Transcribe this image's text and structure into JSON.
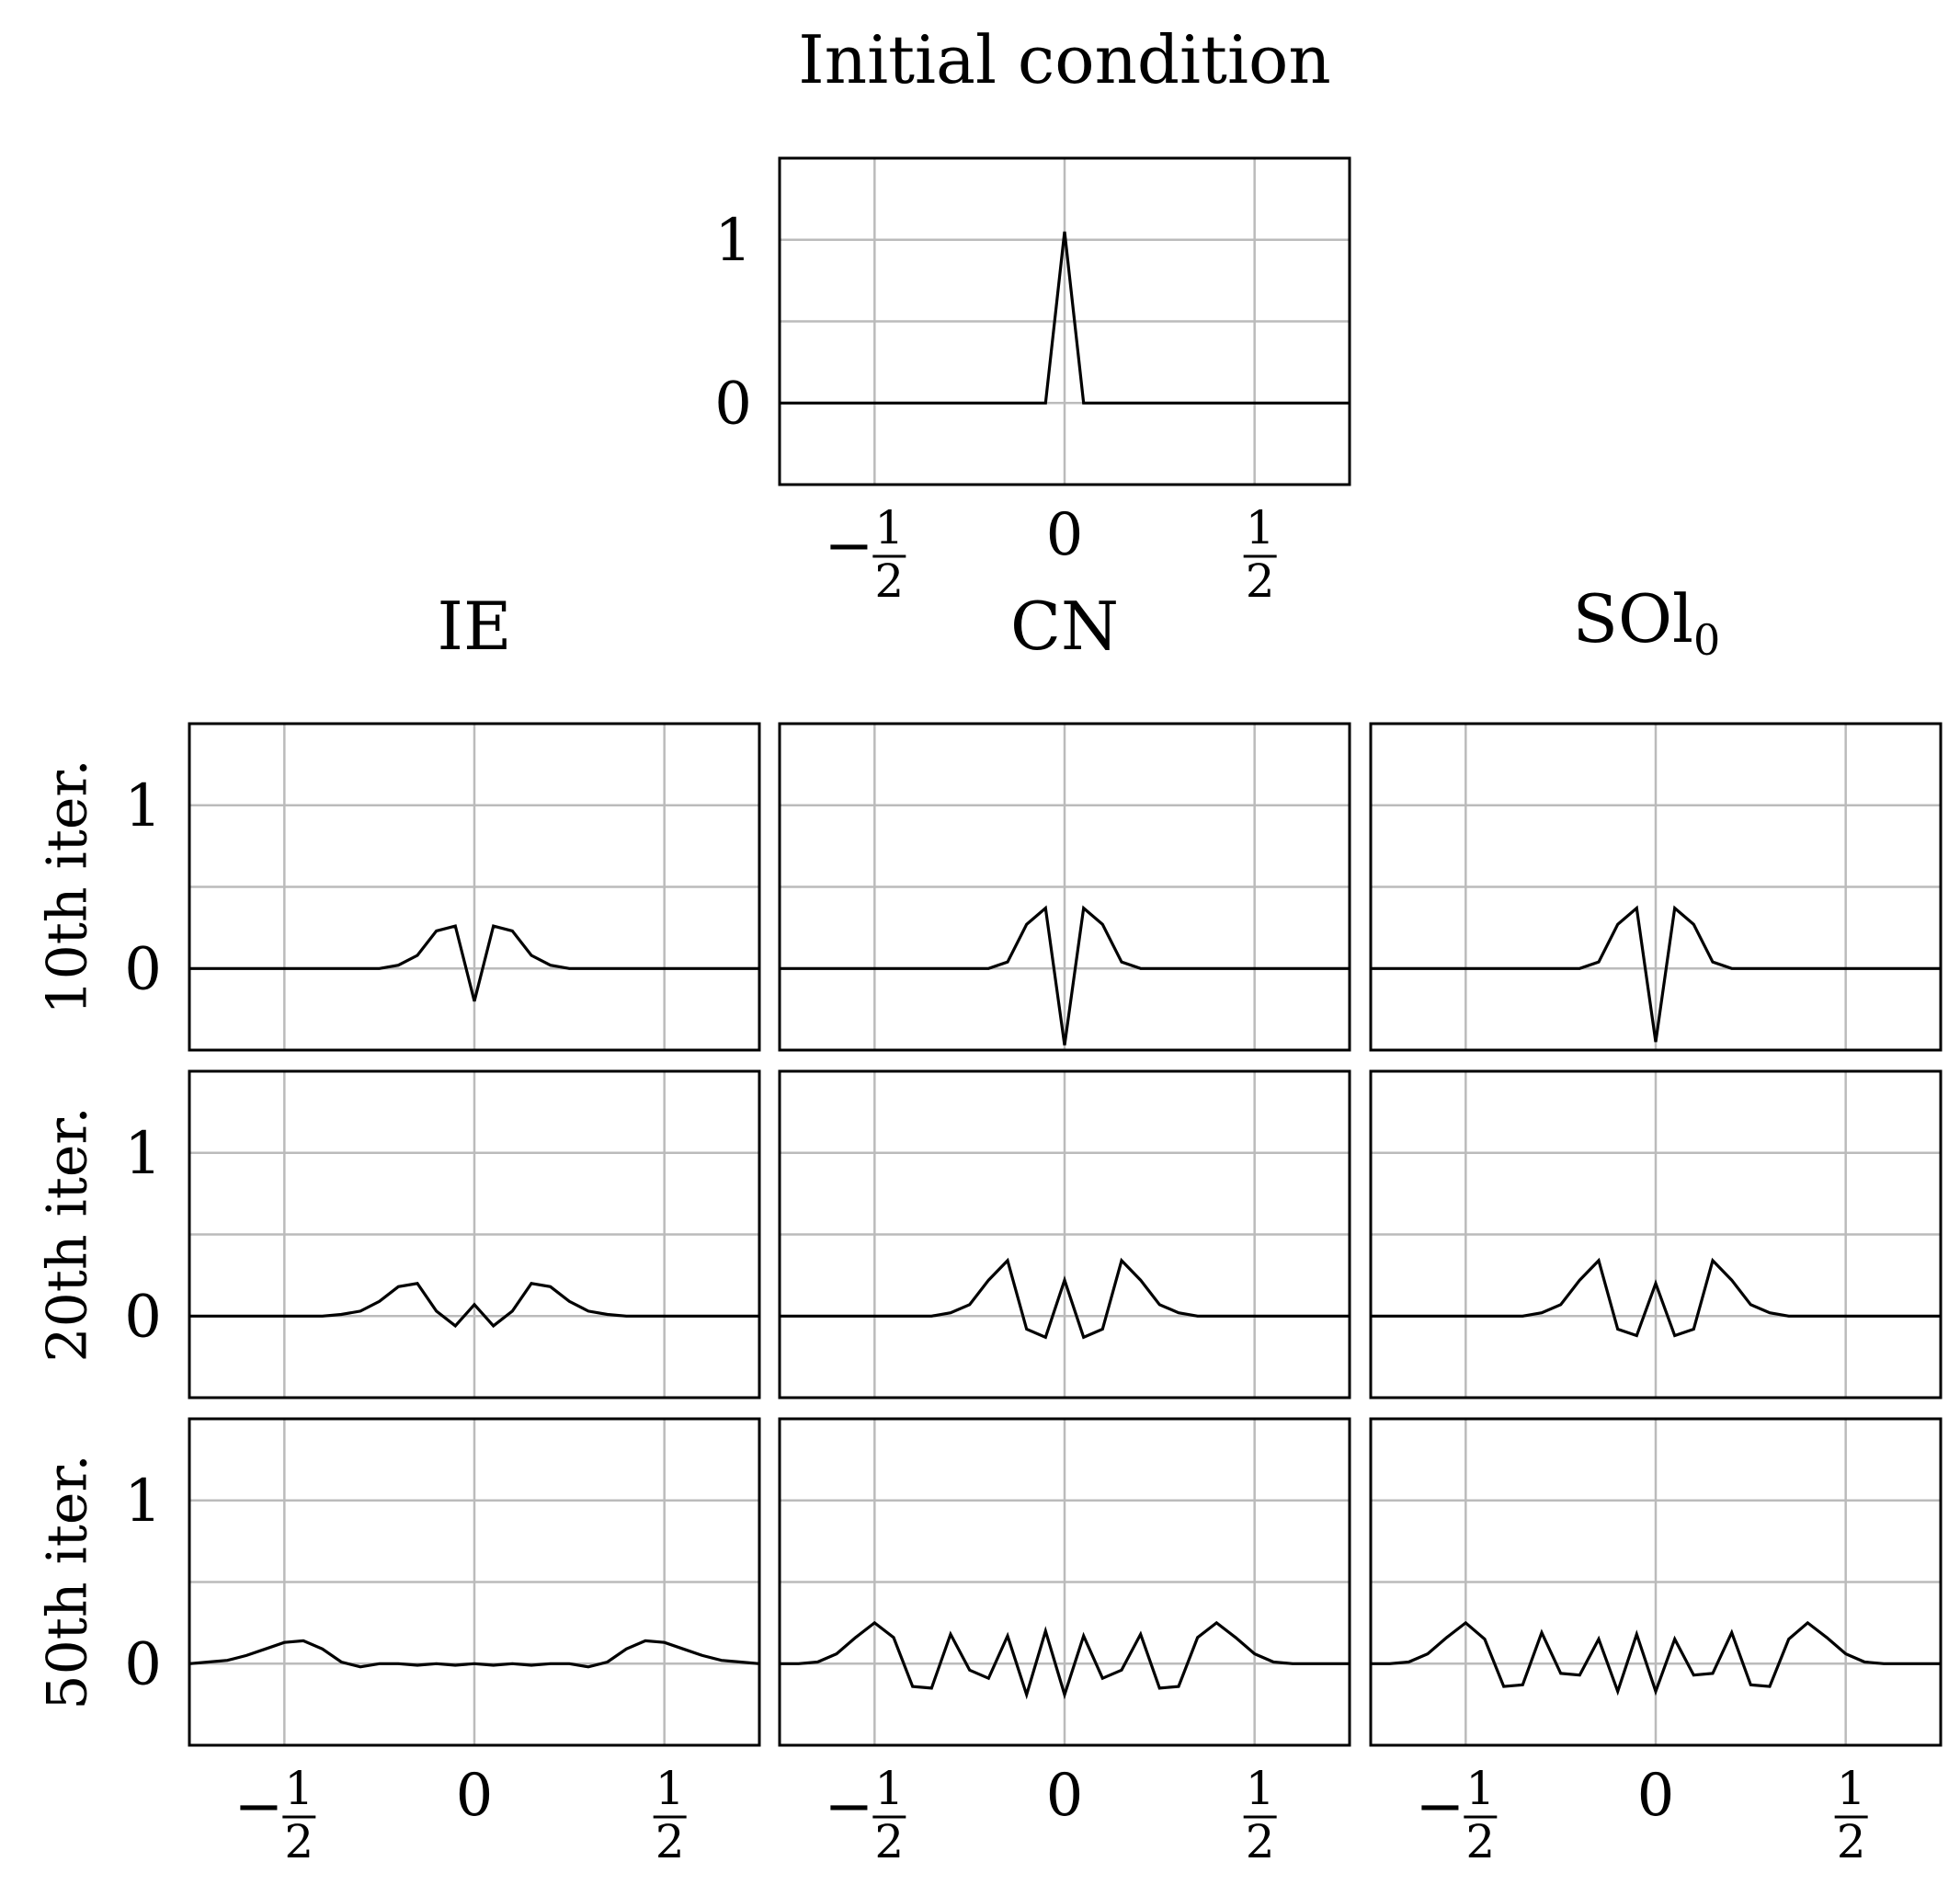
{
  "figure": {
    "title": "Initial condition",
    "column_titles": [
      {
        "main": "IE",
        "sub": ""
      },
      {
        "main": "CN",
        "sub": ""
      },
      {
        "main": "SOl",
        "sub": "0"
      }
    ],
    "row_labels": [
      "10th iter.",
      "20th iter.",
      "50th iter."
    ],
    "x_ticks": [
      {
        "value": -0.5,
        "sign": "−",
        "num": "1",
        "den": "2"
      },
      {
        "value": 0,
        "text": "0"
      },
      {
        "value": 0.5,
        "num": "1",
        "den": "2"
      }
    ],
    "y_ticks": [
      {
        "value": 0,
        "text": "0"
      },
      {
        "value": 1,
        "text": "1"
      }
    ],
    "line_color": "#000000",
    "grid_color": "#bbbbbb"
  },
  "chart_data": [
    {
      "type": "line",
      "panel": "initial",
      "title": "Initial condition",
      "xlim": [
        -0.75,
        0.75
      ],
      "ylim": [
        -0.5,
        1.5
      ],
      "grid": true,
      "x": [
        -0.75,
        -0.05,
        0,
        0.05,
        0.75
      ],
      "series": [
        {
          "values": [
            0,
            0,
            1.05,
            0,
            0
          ]
        }
      ]
    },
    {
      "type": "line",
      "panel": "IE-10",
      "column": "IE",
      "row": "10th iter.",
      "xlim": [
        -0.75,
        0.75
      ],
      "ylim": [
        -0.5,
        1.5
      ],
      "grid": true,
      "x": [
        -0.75,
        -0.25,
        -0.2,
        -0.15,
        -0.1,
        -0.05,
        0,
        0.05,
        0.1,
        0.15,
        0.2,
        0.25,
        0.75
      ],
      "series": [
        {
          "values": [
            0,
            0,
            0.02,
            0.08,
            0.23,
            0.26,
            -0.2,
            0.26,
            0.23,
            0.08,
            0.02,
            0,
            0
          ]
        }
      ]
    },
    {
      "type": "line",
      "panel": "CN-10",
      "column": "CN",
      "row": "10th iter.",
      "xlim": [
        -0.75,
        0.75
      ],
      "ylim": [
        -0.5,
        1.5
      ],
      "grid": true,
      "x": [
        -0.75,
        -0.2,
        -0.15,
        -0.1,
        -0.05,
        0,
        0.05,
        0.1,
        0.15,
        0.2,
        0.75
      ],
      "series": [
        {
          "values": [
            0,
            0,
            0.04,
            0.27,
            0.37,
            -0.47,
            0.37,
            0.27,
            0.04,
            0,
            0
          ]
        }
      ]
    },
    {
      "type": "line",
      "panel": "SO-10",
      "column": "SOl0",
      "row": "10th iter.",
      "xlim": [
        -0.75,
        0.75
      ],
      "ylim": [
        -0.5,
        1.5
      ],
      "grid": true,
      "x": [
        -0.75,
        -0.2,
        -0.15,
        -0.1,
        -0.05,
        0,
        0.05,
        0.1,
        0.15,
        0.2,
        0.75
      ],
      "series": [
        {
          "values": [
            0,
            0,
            0.04,
            0.27,
            0.37,
            -0.45,
            0.37,
            0.27,
            0.04,
            0,
            0
          ]
        }
      ]
    },
    {
      "type": "line",
      "panel": "IE-20",
      "column": "IE",
      "row": "20th iter.",
      "xlim": [
        -0.75,
        0.75
      ],
      "ylim": [
        -0.5,
        1.5
      ],
      "grid": true,
      "x": [
        -0.75,
        -0.4,
        -0.35,
        -0.3,
        -0.25,
        -0.2,
        -0.15,
        -0.1,
        -0.05,
        0,
        0.05,
        0.1,
        0.15,
        0.2,
        0.25,
        0.3,
        0.35,
        0.4,
        0.75
      ],
      "series": [
        {
          "values": [
            0,
            0,
            0.01,
            0.03,
            0.09,
            0.18,
            0.2,
            0.03,
            -0.06,
            0.07,
            -0.06,
            0.03,
            0.2,
            0.18,
            0.09,
            0.03,
            0.01,
            0,
            0
          ]
        }
      ]
    },
    {
      "type": "line",
      "panel": "CN-20",
      "column": "CN",
      "row": "20th iter.",
      "xlim": [
        -0.75,
        0.75
      ],
      "ylim": [
        -0.5,
        1.5
      ],
      "grid": true,
      "x": [
        -0.75,
        -0.35,
        -0.3,
        -0.25,
        -0.2,
        -0.15,
        -0.1,
        -0.05,
        0,
        0.05,
        0.1,
        0.15,
        0.2,
        0.25,
        0.3,
        0.35,
        0.75
      ],
      "series": [
        {
          "values": [
            0,
            0,
            0.02,
            0.07,
            0.22,
            0.34,
            -0.08,
            -0.13,
            0.22,
            -0.13,
            -0.08,
            0.34,
            0.22,
            0.07,
            0.02,
            0,
            0
          ]
        }
      ]
    },
    {
      "type": "line",
      "panel": "SO-20",
      "column": "SOl0",
      "row": "20th iter.",
      "xlim": [
        -0.75,
        0.75
      ],
      "ylim": [
        -0.5,
        1.5
      ],
      "grid": true,
      "x": [
        -0.75,
        -0.35,
        -0.3,
        -0.25,
        -0.2,
        -0.15,
        -0.1,
        -0.05,
        0,
        0.05,
        0.1,
        0.15,
        0.2,
        0.25,
        0.3,
        0.35,
        0.75
      ],
      "series": [
        {
          "values": [
            0,
            0,
            0.02,
            0.07,
            0.22,
            0.34,
            -0.08,
            -0.12,
            0.2,
            -0.12,
            -0.08,
            0.34,
            0.22,
            0.07,
            0.02,
            0,
            0
          ]
        }
      ]
    },
    {
      "type": "line",
      "panel": "IE-50",
      "column": "IE",
      "row": "50th iter.",
      "xlim": [
        -0.75,
        0.75
      ],
      "ylim": [
        -0.5,
        1.5
      ],
      "grid": true,
      "x": [
        -0.75,
        -0.7,
        -0.65,
        -0.6,
        -0.55,
        -0.5,
        -0.45,
        -0.4,
        -0.35,
        -0.3,
        -0.25,
        -0.2,
        -0.15,
        -0.1,
        -0.05,
        0,
        0.05,
        0.1,
        0.15,
        0.2,
        0.25,
        0.3,
        0.35,
        0.4,
        0.45,
        0.5,
        0.55,
        0.6,
        0.65,
        0.7,
        0.75
      ],
      "series": [
        {
          "values": [
            0,
            0.01,
            0.02,
            0.05,
            0.09,
            0.13,
            0.14,
            0.09,
            0.01,
            -0.02,
            0,
            0,
            -0.01,
            0,
            -0.01,
            0,
            -0.01,
            0,
            -0.01,
            0,
            0,
            -0.02,
            0.01,
            0.09,
            0.14,
            0.13,
            0.09,
            0.05,
            0.02,
            0.01,
            0
          ]
        }
      ]
    },
    {
      "type": "line",
      "panel": "CN-50",
      "column": "CN",
      "row": "50th iter.",
      "xlim": [
        -0.75,
        0.75
      ],
      "ylim": [
        -0.5,
        1.5
      ],
      "grid": true,
      "x": [
        -0.75,
        -0.7,
        -0.65,
        -0.6,
        -0.55,
        -0.5,
        -0.45,
        -0.4,
        -0.35,
        -0.3,
        -0.25,
        -0.2,
        -0.15,
        -0.1,
        -0.05,
        0,
        0.05,
        0.1,
        0.15,
        0.2,
        0.25,
        0.3,
        0.35,
        0.4,
        0.45,
        0.5,
        0.55,
        0.6,
        0.65,
        0.7,
        0.75
      ],
      "series": [
        {
          "values": [
            0,
            0,
            0.01,
            0.06,
            0.16,
            0.25,
            0.16,
            -0.14,
            -0.15,
            0.18,
            -0.04,
            -0.09,
            0.17,
            -0.19,
            0.2,
            -0.19,
            0.17,
            -0.09,
            -0.04,
            0.18,
            -0.15,
            -0.14,
            0.16,
            0.25,
            0.16,
            0.06,
            0.01,
            0,
            0,
            0,
            0
          ]
        }
      ]
    },
    {
      "type": "line",
      "panel": "SO-50",
      "column": "SOl0",
      "row": "50th iter.",
      "xlim": [
        -0.75,
        0.75
      ],
      "ylim": [
        -0.5,
        1.5
      ],
      "grid": true,
      "x": [
        -0.75,
        -0.7,
        -0.65,
        -0.6,
        -0.55,
        -0.5,
        -0.45,
        -0.4,
        -0.35,
        -0.3,
        -0.25,
        -0.2,
        -0.15,
        -0.1,
        -0.05,
        0,
        0.05,
        0.1,
        0.15,
        0.2,
        0.25,
        0.3,
        0.35,
        0.4,
        0.45,
        0.5,
        0.55,
        0.6,
        0.65,
        0.7,
        0.75
      ],
      "series": [
        {
          "values": [
            0,
            0,
            0.01,
            0.06,
            0.16,
            0.25,
            0.15,
            -0.14,
            -0.13,
            0.19,
            -0.06,
            -0.07,
            0.15,
            -0.17,
            0.18,
            -0.17,
            0.15,
            -0.07,
            -0.06,
            0.19,
            -0.13,
            -0.14,
            0.15,
            0.25,
            0.16,
            0.06,
            0.01,
            0,
            0,
            0,
            0
          ]
        }
      ]
    }
  ]
}
